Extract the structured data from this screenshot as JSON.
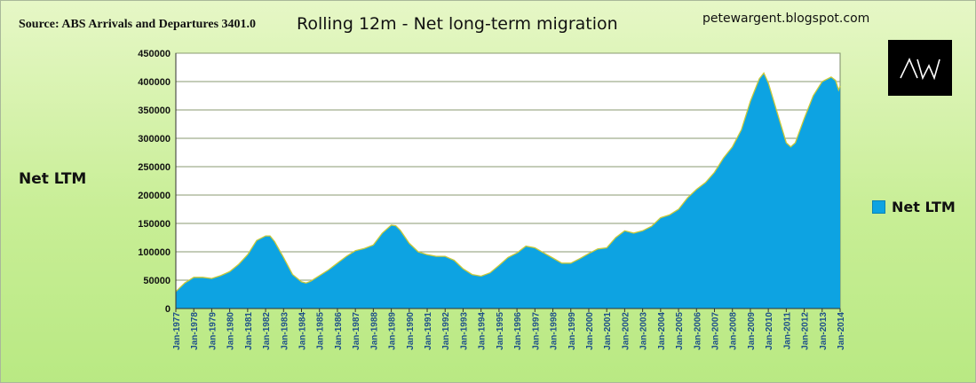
{
  "header": {
    "source": "Source: ABS Arrivals and Departures 3401.0",
    "blog": "petewargent.blogspot.com",
    "logo_text": "AW"
  },
  "colors": {
    "background": "#c8ee96",
    "plot_area": "#ffffff",
    "area_fill": "#0da3e2",
    "area_edge": "#c9c93a",
    "gridline": "#8a9a70"
  },
  "chart_data": {
    "type": "area",
    "title": "Rolling 12m - Net long-term migration",
    "xlabel": "",
    "ylabel": "Net LTM",
    "legend": "right",
    "grid": true,
    "ylim": [
      0,
      450000
    ],
    "yticks": [
      0,
      50000,
      100000,
      150000,
      200000,
      250000,
      300000,
      350000,
      400000,
      450000
    ],
    "xticks": [
      "Jan-1977",
      "Jan-1978",
      "Jan-1979",
      "Jan-1980",
      "Jan-1981",
      "Jan-1982",
      "Jan-1983",
      "Jan-1984",
      "Jan-1985",
      "Jan-1986",
      "Jan-1987",
      "Jan-1988",
      "Jan-1989",
      "Jan-1990",
      "Jan-1991",
      "Jan-1992",
      "Jan-1993",
      "Jan-1994",
      "Jan-1995",
      "Jan-1996",
      "Jan-1997",
      "Jan-1998",
      "Jan-1999",
      "Jan-2000",
      "Jan-2001",
      "Jan-2002",
      "Jan-2003",
      "Jan-2004",
      "Jan-2005",
      "Jan-2006",
      "Jan-2007",
      "Jan-2008",
      "Jan-2009",
      "Jan-2010",
      "Jan-2011",
      "Jan-2012",
      "Jan-2013",
      "Jan-2014"
    ],
    "series": [
      {
        "name": "Net LTM",
        "points": [
          [
            "Jan-1977",
            30000
          ],
          [
            "Jul-1977",
            45000
          ],
          [
            "Jan-1978",
            55000
          ],
          [
            "Jul-1978",
            55000
          ],
          [
            "Jan-1979",
            53000
          ],
          [
            "Jul-1979",
            58000
          ],
          [
            "Jan-1980",
            65000
          ],
          [
            "Jul-1980",
            78000
          ],
          [
            "Jan-1981",
            95000
          ],
          [
            "Jul-1981",
            120000
          ],
          [
            "Jan-1982",
            128000
          ],
          [
            "Apr-1982",
            128000
          ],
          [
            "Jul-1982",
            118000
          ],
          [
            "Jan-1983",
            90000
          ],
          [
            "Jul-1983",
            60000
          ],
          [
            "Jan-1984",
            47000
          ],
          [
            "Apr-1984",
            45000
          ],
          [
            "Jul-1984",
            48000
          ],
          [
            "Jan-1985",
            58000
          ],
          [
            "Jul-1985",
            68000
          ],
          [
            "Jan-1986",
            80000
          ],
          [
            "Jul-1986",
            92000
          ],
          [
            "Jan-1987",
            102000
          ],
          [
            "Jul-1987",
            106000
          ],
          [
            "Jan-1988",
            112000
          ],
          [
            "Jul-1988",
            133000
          ],
          [
            "Jan-1989",
            147000
          ],
          [
            "Apr-1989",
            146000
          ],
          [
            "Jul-1989",
            138000
          ],
          [
            "Jan-1990",
            115000
          ],
          [
            "Jul-1990",
            100000
          ],
          [
            "Jan-1991",
            95000
          ],
          [
            "Jul-1991",
            92000
          ],
          [
            "Jan-1992",
            92000
          ],
          [
            "Jul-1992",
            85000
          ],
          [
            "Jan-1993",
            70000
          ],
          [
            "Jul-1993",
            60000
          ],
          [
            "Jan-1994",
            57000
          ],
          [
            "Jul-1994",
            63000
          ],
          [
            "Jan-1995",
            76000
          ],
          [
            "Jul-1995",
            90000
          ],
          [
            "Jan-1996",
            98000
          ],
          [
            "Jul-1996",
            110000
          ],
          [
            "Jan-1997",
            107000
          ],
          [
            "Jul-1997",
            98000
          ],
          [
            "Jan-1998",
            89000
          ],
          [
            "Jul-1998",
            80000
          ],
          [
            "Jan-1999",
            80000
          ],
          [
            "Jul-1999",
            88000
          ],
          [
            "Jan-2000",
            97000
          ],
          [
            "Jul-2000",
            105000
          ],
          [
            "Jan-2001",
            107000
          ],
          [
            "Jul-2001",
            125000
          ],
          [
            "Jan-2002",
            137000
          ],
          [
            "Jul-2002",
            133000
          ],
          [
            "Jan-2003",
            137000
          ],
          [
            "Jul-2003",
            145000
          ],
          [
            "Jan-2004",
            160000
          ],
          [
            "Jul-2004",
            165000
          ],
          [
            "Jan-2005",
            175000
          ],
          [
            "Jul-2005",
            195000
          ],
          [
            "Jan-2006",
            210000
          ],
          [
            "Jul-2006",
            222000
          ],
          [
            "Jan-2007",
            240000
          ],
          [
            "Jul-2007",
            265000
          ],
          [
            "Jan-2008",
            285000
          ],
          [
            "Jul-2008",
            315000
          ],
          [
            "Jan-2009",
            365000
          ],
          [
            "Jul-2009",
            405000
          ],
          [
            "Oct-2009",
            415000
          ],
          [
            "Jan-2010",
            398000
          ],
          [
            "Jul-2010",
            345000
          ],
          [
            "Jan-2011",
            292000
          ],
          [
            "Apr-2011",
            285000
          ],
          [
            "Jul-2011",
            292000
          ],
          [
            "Jan-2012",
            335000
          ],
          [
            "Jul-2012",
            375000
          ],
          [
            "Jan-2013",
            400000
          ],
          [
            "Jul-2013",
            408000
          ],
          [
            "Oct-2013",
            402000
          ],
          [
            "Dec-2013",
            385000
          ],
          [
            "Jan-2014",
            392000
          ]
        ]
      }
    ]
  }
}
